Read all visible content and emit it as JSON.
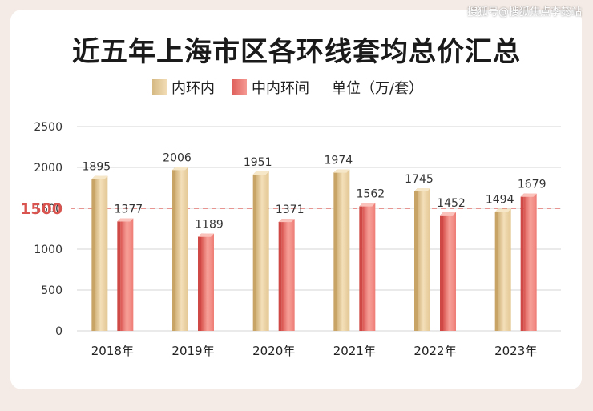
{
  "watermark": "搜狐号@搜狐焦点李懿站",
  "chart_data": {
    "type": "bar",
    "title": "近五年上海市区各环线套均总价汇总",
    "unit": "单位（万/套）",
    "categories": [
      "2018年",
      "2019年",
      "2020年",
      "2021年",
      "2022年",
      "2023年"
    ],
    "series": [
      {
        "name": "内环内",
        "values": [
          1895,
          2006,
          1951,
          1974,
          1745,
          1494
        ],
        "color": "#e8cfa0"
      },
      {
        "name": "中内环间",
        "values": [
          1377,
          1189,
          1371,
          1562,
          1452,
          1679
        ],
        "color": "#f08a84"
      }
    ],
    "ylim": [
      0,
      2500
    ],
    "yticks": [
      0,
      500,
      1000,
      1500,
      2000,
      2500
    ],
    "highlight_line": {
      "value": 1500,
      "label": "1500",
      "color": "#d9534f"
    },
    "grid": true,
    "legend_position": "top"
  }
}
